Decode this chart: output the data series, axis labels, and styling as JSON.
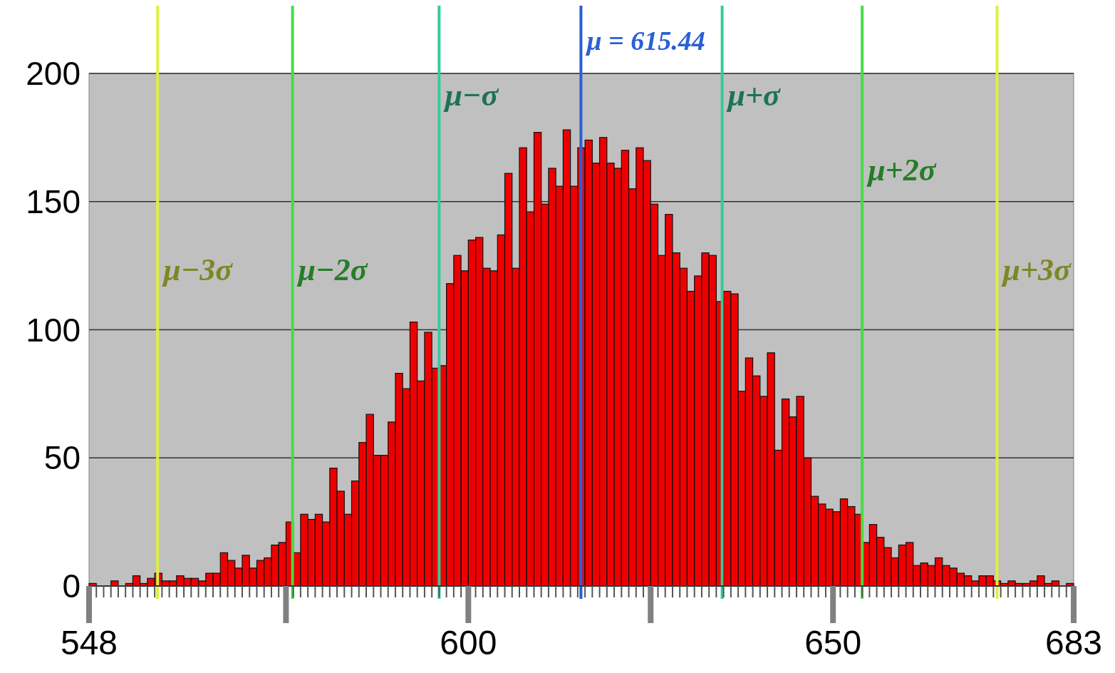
{
  "chart_data": {
    "type": "histogram",
    "bins": [
      548,
      549,
      550,
      551,
      552,
      553,
      554,
      555,
      556,
      557,
      558,
      559,
      560,
      561,
      562,
      563,
      564,
      565,
      566,
      567,
      568,
      569,
      570,
      571,
      572,
      573,
      574,
      575,
      576,
      577,
      578,
      579,
      580,
      581,
      582,
      583,
      584,
      585,
      586,
      587,
      588,
      589,
      590,
      591,
      592,
      593,
      594,
      595,
      596,
      597,
      598,
      599,
      600,
      601,
      602,
      603,
      604,
      605,
      606,
      607,
      608,
      609,
      610,
      611,
      612,
      613,
      614,
      615,
      616,
      617,
      618,
      619,
      620,
      621,
      622,
      623,
      624,
      625,
      626,
      627,
      628,
      629,
      630,
      631,
      632,
      633,
      634,
      635,
      636,
      637,
      638,
      639,
      640,
      641,
      642,
      643,
      644,
      645,
      646,
      647,
      648,
      649,
      650,
      651,
      652,
      653,
      654,
      655,
      656,
      657,
      658,
      659,
      660,
      661,
      662,
      663,
      664,
      665,
      666,
      667,
      668,
      669,
      670,
      671,
      672,
      673,
      674,
      675,
      676,
      677,
      678,
      679,
      680,
      681,
      682,
      683
    ],
    "values": [
      1,
      0,
      0,
      2,
      0,
      1,
      4,
      1,
      3,
      5,
      2,
      2,
      4,
      3,
      3,
      2,
      5,
      5,
      13,
      10,
      7,
      12,
      7,
      10,
      11,
      16,
      17,
      25,
      13,
      28,
      26,
      28,
      25,
      46,
      37,
      28,
      41,
      56,
      67,
      51,
      51,
      64,
      83,
      77,
      103,
      80,
      99,
      85,
      86,
      118,
      129,
      123,
      135,
      136,
      124,
      123,
      137,
      161,
      124,
      171,
      146,
      177,
      149,
      163,
      156,
      178,
      156,
      171,
      174,
      165,
      175,
      165,
      163,
      170,
      155,
      171,
      166,
      149,
      129,
      145,
      130,
      124,
      115,
      121,
      130,
      129,
      111,
      115,
      114,
      76,
      89,
      82,
      74,
      91,
      53,
      73,
      66,
      74,
      50,
      35,
      32,
      30,
      29,
      34,
      31,
      28,
      17,
      24,
      19,
      15,
      11,
      16,
      17,
      8,
      9,
      8,
      11,
      8,
      7,
      5,
      4,
      2,
      4,
      4,
      2,
      1,
      2,
      1,
      1,
      2,
      4,
      1,
      2,
      0,
      1
    ],
    "color": "#ee0000",
    "xlim": [
      548,
      683
    ],
    "xticks": [
      548,
      {
        "value": 575,
        "label": null
      },
      600,
      {
        "value": 625,
        "label": null
      },
      650,
      683
    ],
    "ylim": [
      0,
      200
    ],
    "yticks": [
      0,
      50,
      100,
      150,
      200
    ],
    "grid": "y",
    "ref_lines": [
      {
        "axis": "x",
        "value": 615.44,
        "label": "μ = 615.44",
        "color": "#2a5fd8"
      },
      {
        "axis": "x",
        "value": 596,
        "label": "μ−σ",
        "color": "#33cc99"
      },
      {
        "axis": "x",
        "value": 634.8,
        "label": "μ+σ",
        "color": "#33cc99"
      },
      {
        "axis": "x",
        "value": 575.9,
        "label": "μ−2σ",
        "color": "#44dd44"
      },
      {
        "axis": "x",
        "value": 654,
        "label": "μ+2σ",
        "color": "#44dd44"
      },
      {
        "axis": "x",
        "value": 557.4,
        "label": "μ−3σ",
        "color": "#ddee44"
      },
      {
        "axis": "x",
        "value": 672.5,
        "label": "μ+3σ",
        "color": "#ddee44"
      }
    ]
  }
}
